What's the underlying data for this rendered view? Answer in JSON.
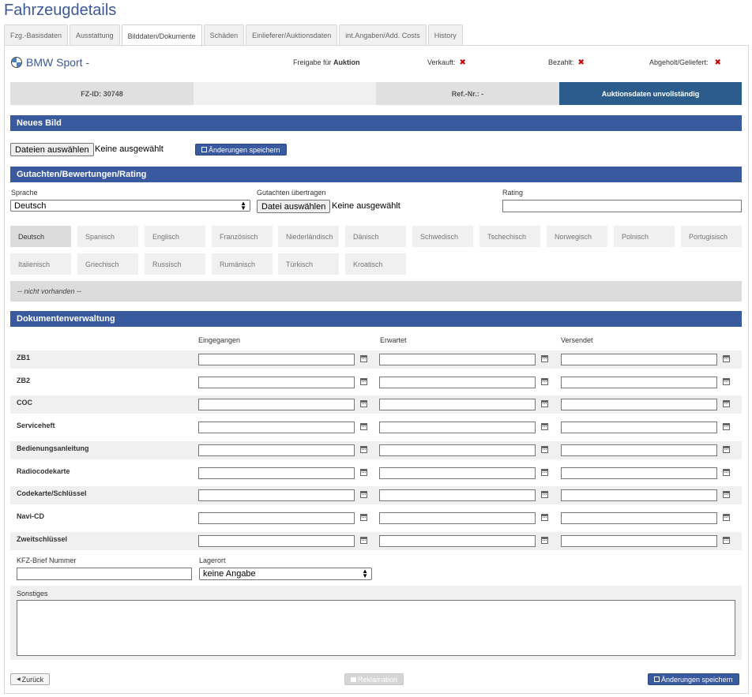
{
  "page": {
    "title": "Fahrzeugdetails"
  },
  "tabs": [
    {
      "label": "Fzg.-Basisdaten",
      "active": false
    },
    {
      "label": "Ausstattung",
      "active": false
    },
    {
      "label": "Bilddaten/Dokumente",
      "active": true
    },
    {
      "label": "Schäden",
      "active": false
    },
    {
      "label": "Einlieferer/Auktionsdaten",
      "active": false
    },
    {
      "label": "int.Angaben/Add. Costs",
      "active": false
    },
    {
      "label": "History",
      "active": false
    }
  ],
  "vehicle": {
    "name": "BMW Sport -",
    "freigabe_prefix": "Freigabe für",
    "freigabe_value": "Auktion",
    "verkauft_label": "Verkauft:",
    "bezahlt_label": "Bezahlt:",
    "abgeholt_label": "Abgeholt/Geliefert:",
    "status_mark": "✖"
  },
  "info_bar": {
    "fz_id": "FZ-ID: 30748",
    "ref_nr": "Ref.-Nr.: -",
    "auction_status": "Auktionsdaten unvollständig",
    "colors": {
      "grey": "#e0e0e0",
      "light": "#f0f0f0",
      "accent": "#2b5c8c"
    }
  },
  "new_image": {
    "section_title": "Neues Bild",
    "file_button": "Dateien auswählen",
    "file_status": "Keine ausgewählt",
    "save_label": "Änderungen speichern"
  },
  "rating": {
    "section_title": "Gutachten/Bewertungen/Rating",
    "sprache_label": "Sprache",
    "sprache_value": "Deutsch",
    "upload_label": "Gutachten übertragen",
    "file_button": "Datei auswählen",
    "file_status": "Keine ausgewählt",
    "rating_label": "Rating",
    "languages": [
      "Deutsch",
      "Spanisch",
      "Englisch",
      "Französisch",
      "Niederländisch",
      "Dänisch",
      "Schwedisch",
      "Tschechisch",
      "Norwegisch",
      "Polnisch",
      "Portugisisch",
      "Italienisch",
      "Griechisch",
      "Russisch",
      "Rumänisch",
      "Türkisch",
      "Kroatisch"
    ],
    "not_available": "-- nicht vorhanden --"
  },
  "documents": {
    "section_title": "Dokumentenverwaltung",
    "col_received": "Eingegangen",
    "col_expected": "Erwartet",
    "col_sent": "Versendet",
    "rows": [
      "ZB1",
      "ZB2",
      "COC",
      "Serviceheft",
      "Bedienungsanleitung",
      "Radiocodekarte",
      "Codekarte/Schlüssel",
      "Navi-CD",
      "Zweitschlüssel"
    ],
    "kfz_label": "KFZ-Brief Nummer",
    "lagerort_label": "Lagerort",
    "lagerort_value": "keine Angabe",
    "sonstiges_label": "Sonstiges"
  },
  "footer": {
    "back_label": "Zurück",
    "complaint_label": "Reklamation",
    "save_label": "Änderungen speichern"
  }
}
